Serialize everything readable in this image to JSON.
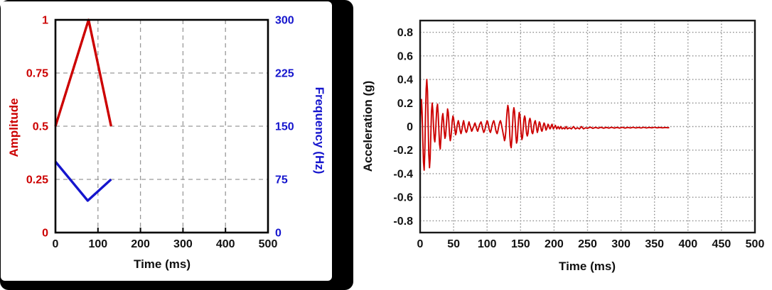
{
  "page": {
    "background": "#ffffff"
  },
  "left_panel": {
    "card_color": "#000000",
    "inner_color": "#ffffff"
  },
  "chart_data": [
    {
      "type": "line",
      "title": "",
      "xlabel": "Time (ms)",
      "x_range": [
        0,
        500
      ],
      "x_ticks": [
        0,
        100,
        200,
        300,
        400,
        500
      ],
      "grid": "dashed",
      "grid_color": "#999999",
      "frame_color": "#000000",
      "frame_width": 2.6,
      "inside_ticks": true,
      "tick_color": "#111111",
      "y_axes": [
        {
          "side": "left",
          "label": "Amplitude",
          "color": "#cc0000",
          "range": [
            0,
            1
          ],
          "ticks": [
            "0",
            "0.25",
            "0.5",
            "0.75",
            "1"
          ]
        },
        {
          "side": "right",
          "label": "Frequency (Hz)",
          "color": "#1515cd",
          "range": [
            0,
            300
          ],
          "ticks": [
            "0",
            "75",
            "150",
            "225",
            "300"
          ]
        }
      ],
      "series": [
        {
          "name": "amplitude",
          "axis": 0,
          "color": "#cc0000",
          "width": 3.4,
          "points": [
            [
              0,
              0.5
            ],
            [
              78,
              1.0
            ],
            [
              131,
              0.5
            ]
          ]
        },
        {
          "name": "frequency",
          "axis": 1,
          "color": "#1515cd",
          "width": 3.4,
          "points": [
            [
              0,
              100
            ],
            [
              76,
              45
            ],
            [
              131,
              75
            ]
          ]
        }
      ]
    },
    {
      "type": "line",
      "title": "",
      "xlabel": "Time (ms)",
      "x_range": [
        0,
        500
      ],
      "x_ticks": [
        0,
        50,
        100,
        150,
        200,
        250,
        300,
        350,
        400,
        450,
        500
      ],
      "grid": "dotted",
      "grid_color": "#8f8f8f",
      "frame_color": "#1a1a1a",
      "frame_width": 2.4,
      "inside_ticks": false,
      "tick_color": "#111111",
      "y_axes": [
        {
          "side": "left",
          "label": "Acceleration (g)",
          "color": "#111111",
          "range": [
            -0.9,
            0.9
          ],
          "ticks": [
            "-0.8",
            "-0.6",
            "-0.4",
            "-0.2",
            "0",
            "0.2",
            "0.4",
            "0.6",
            "0.8"
          ]
        }
      ],
      "series": [
        {
          "name": "acceleration",
          "axis": 0,
          "color": "#cc0000",
          "width": 1.9,
          "points": [
            [
              0,
              0.0
            ],
            [
              1,
              0.12
            ],
            [
              2,
              0.23
            ],
            [
              3,
              0.12
            ],
            [
              4,
              -0.12
            ],
            [
              5,
              -0.3
            ],
            [
              6,
              -0.37
            ],
            [
              7,
              -0.22
            ],
            [
              8,
              0.08
            ],
            [
              9,
              0.32
            ],
            [
              10,
              0.4
            ],
            [
              11,
              0.3
            ],
            [
              12,
              0.02
            ],
            [
              13,
              -0.24
            ],
            [
              14,
              -0.35
            ],
            [
              15,
              -0.27
            ],
            [
              16,
              -0.06
            ],
            [
              17,
              0.13
            ],
            [
              18,
              0.2
            ],
            [
              19,
              0.14
            ],
            [
              20,
              0.01
            ],
            [
              21,
              -0.1
            ],
            [
              22,
              -0.13
            ],
            [
              23,
              -0.06
            ],
            [
              24,
              0.06
            ],
            [
              25,
              0.16
            ],
            [
              26,
              0.19
            ],
            [
              27,
              0.11
            ],
            [
              28,
              -0.03
            ],
            [
              29,
              -0.15
            ],
            [
              30,
              -0.19
            ],
            [
              31,
              -0.11
            ],
            [
              32,
              0.0
            ],
            [
              33,
              0.08
            ],
            [
              34,
              0.11
            ],
            [
              35,
              0.05
            ],
            [
              36,
              -0.04
            ],
            [
              37,
              -0.1
            ],
            [
              38,
              -0.08
            ],
            [
              39,
              -0.01
            ],
            [
              40,
              0.08
            ],
            [
              41,
              0.15
            ],
            [
              42,
              0.12
            ],
            [
              43,
              0.03
            ],
            [
              44,
              -0.07
            ],
            [
              45,
              -0.12
            ],
            [
              46,
              -0.09
            ],
            [
              47,
              -0.02
            ],
            [
              48,
              0.05
            ],
            [
              49,
              0.09
            ],
            [
              50,
              0.07
            ],
            [
              51,
              0.02
            ],
            [
              52,
              -0.03
            ],
            [
              53,
              -0.07
            ],
            [
              54,
              -0.05
            ],
            [
              55,
              0.0
            ],
            [
              56,
              0.03
            ],
            [
              57,
              0.05
            ],
            [
              58,
              0.03
            ],
            [
              59,
              -0.01
            ],
            [
              60,
              -0.04
            ],
            [
              61,
              -0.06
            ],
            [
              62,
              -0.04
            ],
            [
              63,
              -0.01
            ],
            [
              64,
              0.03
            ],
            [
              65,
              0.05
            ],
            [
              66,
              0.02
            ],
            [
              67,
              -0.01
            ],
            [
              68,
              -0.04
            ],
            [
              69,
              -0.05
            ],
            [
              70,
              -0.04
            ],
            [
              71,
              -0.01
            ],
            [
              72,
              0.02
            ],
            [
              73,
              0.04
            ],
            [
              74,
              0.02
            ],
            [
              75,
              0.0
            ],
            [
              76,
              -0.02
            ],
            [
              77,
              -0.04
            ],
            [
              78,
              -0.03
            ],
            [
              79,
              -0.01
            ],
            [
              80,
              0.0
            ],
            [
              81,
              0.02
            ],
            [
              82,
              0.03
            ],
            [
              83,
              0.01
            ],
            [
              84,
              -0.01
            ],
            [
              85,
              -0.03
            ],
            [
              86,
              -0.04
            ],
            [
              87,
              -0.02
            ],
            [
              88,
              0.0
            ],
            [
              89,
              0.02
            ],
            [
              90,
              0.03
            ],
            [
              91,
              0.04
            ],
            [
              92,
              0.02
            ],
            [
              93,
              -0.01
            ],
            [
              94,
              -0.03
            ],
            [
              95,
              -0.05
            ],
            [
              96,
              -0.04
            ],
            [
              97,
              -0.02
            ],
            [
              98,
              0.01
            ],
            [
              99,
              0.03
            ],
            [
              100,
              0.05
            ],
            [
              101,
              0.04
            ],
            [
              102,
              0.01
            ],
            [
              103,
              -0.02
            ],
            [
              104,
              -0.04
            ],
            [
              105,
              -0.05
            ],
            [
              106,
              -0.03
            ],
            [
              107,
              0.0
            ],
            [
              108,
              0.02
            ],
            [
              109,
              0.04
            ],
            [
              110,
              0.05
            ],
            [
              111,
              0.03
            ],
            [
              112,
              0.0
            ],
            [
              113,
              -0.03
            ],
            [
              114,
              -0.05
            ],
            [
              115,
              -0.06
            ],
            [
              116,
              -0.04
            ],
            [
              117,
              -0.01
            ],
            [
              118,
              0.02
            ],
            [
              119,
              0.04
            ],
            [
              120,
              0.05
            ],
            [
              121,
              0.03
            ],
            [
              122,
              0.0
            ],
            [
              123,
              -0.03
            ],
            [
              124,
              -0.06
            ],
            [
              125,
              -0.09
            ],
            [
              126,
              -0.12
            ],
            [
              127,
              -0.1
            ],
            [
              128,
              -0.04
            ],
            [
              129,
              0.06
            ],
            [
              130,
              0.14
            ],
            [
              131,
              0.18
            ],
            [
              132,
              0.15
            ],
            [
              133,
              0.05
            ],
            [
              134,
              -0.08
            ],
            [
              135,
              -0.16
            ],
            [
              136,
              -0.18
            ],
            [
              137,
              -0.11
            ],
            [
              138,
              0.01
            ],
            [
              139,
              0.12
            ],
            [
              140,
              0.16
            ],
            [
              141,
              0.13
            ],
            [
              142,
              0.03
            ],
            [
              143,
              -0.08
            ],
            [
              144,
              -0.14
            ],
            [
              145,
              -0.12
            ],
            [
              146,
              -0.03
            ],
            [
              147,
              0.07
            ],
            [
              148,
              0.12
            ],
            [
              149,
              0.1
            ],
            [
              150,
              0.02
            ],
            [
              151,
              -0.07
            ],
            [
              152,
              -0.11
            ],
            [
              153,
              -0.09
            ],
            [
              154,
              -0.01
            ],
            [
              155,
              0.06
            ],
            [
              156,
              0.09
            ],
            [
              157,
              0.07
            ],
            [
              158,
              0.0
            ],
            [
              159,
              -0.06
            ],
            [
              160,
              -0.08
            ],
            [
              161,
              -0.06
            ],
            [
              162,
              0.0
            ],
            [
              163,
              0.05
            ],
            [
              164,
              0.07
            ],
            [
              165,
              0.05
            ],
            [
              166,
              -0.01
            ],
            [
              167,
              -0.05
            ],
            [
              168,
              -0.06
            ],
            [
              169,
              -0.04
            ],
            [
              170,
              0.01
            ],
            [
              171,
              0.04
            ],
            [
              172,
              0.05
            ],
            [
              173,
              0.02
            ],
            [
              174,
              -0.02
            ],
            [
              175,
              -0.05
            ],
            [
              176,
              -0.03
            ],
            [
              177,
              0.01
            ],
            [
              178,
              0.04
            ],
            [
              179,
              0.03
            ],
            [
              180,
              0.0
            ],
            [
              181,
              -0.03
            ],
            [
              182,
              -0.04
            ],
            [
              183,
              -0.02
            ],
            [
              184,
              0.01
            ],
            [
              185,
              0.03
            ],
            [
              186,
              0.02
            ],
            [
              187,
              -0.01
            ],
            [
              188,
              -0.03
            ],
            [
              189,
              -0.02
            ],
            [
              190,
              0.0
            ],
            [
              191,
              0.02
            ],
            [
              192,
              0.01
            ],
            [
              193,
              -0.01
            ],
            [
              194,
              -0.02
            ],
            [
              195,
              -0.01
            ],
            [
              196,
              0.01
            ],
            [
              197,
              0.02
            ],
            [
              198,
              0.0
            ],
            [
              199,
              -0.02
            ],
            [
              200,
              -0.01
            ],
            [
              202,
              0.01
            ],
            [
              204,
              -0.02
            ],
            [
              206,
              0.0
            ],
            [
              208,
              -0.02
            ],
            [
              210,
              0.0
            ],
            [
              212,
              -0.02
            ],
            [
              214,
              -0.01
            ],
            [
              216,
              -0.02
            ],
            [
              218,
              0.0
            ],
            [
              220,
              -0.02
            ],
            [
              223,
              -0.01
            ],
            [
              226,
              -0.02
            ],
            [
              229,
              0.0
            ],
            [
              232,
              -0.02
            ],
            [
              235,
              -0.01
            ],
            [
              238,
              -0.02
            ],
            [
              241,
              0.0
            ],
            [
              244,
              -0.02
            ],
            [
              247,
              -0.01
            ],
            [
              250,
              -0.015
            ],
            [
              254,
              -0.005
            ],
            [
              258,
              -0.015
            ],
            [
              262,
              -0.007
            ],
            [
              266,
              -0.014
            ],
            [
              270,
              -0.006
            ],
            [
              274,
              -0.014
            ],
            [
              278,
              -0.007
            ],
            [
              282,
              -0.013
            ],
            [
              286,
              -0.006
            ],
            [
              290,
              -0.013
            ],
            [
              294,
              -0.007
            ],
            [
              298,
              -0.013
            ],
            [
              302,
              -0.006
            ],
            [
              306,
              -0.013
            ],
            [
              310,
              -0.007
            ],
            [
              314,
              -0.012
            ],
            [
              318,
              -0.006
            ],
            [
              322,
              -0.012
            ],
            [
              326,
              -0.007
            ],
            [
              330,
              -0.012
            ],
            [
              334,
              -0.006
            ],
            [
              338,
              -0.012
            ],
            [
              342,
              -0.007
            ],
            [
              346,
              -0.011
            ],
            [
              350,
              -0.006
            ],
            [
              354,
              -0.011
            ],
            [
              358,
              -0.007
            ],
            [
              362,
              -0.011
            ],
            [
              366,
              -0.008
            ],
            [
              370,
              -0.01
            ],
            [
              372,
              -0.009
            ]
          ]
        }
      ]
    }
  ]
}
